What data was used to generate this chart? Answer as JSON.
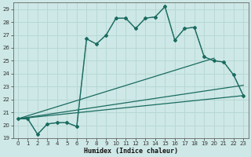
{
  "xlabel": "Humidex (Indice chaleur)",
  "background_color": "#cde8e6",
  "grid_color": "#b8d8d5",
  "line_color": "#1a6b60",
  "xlim": [
    -0.5,
    23.5
  ],
  "ylim": [
    19,
    29.5
  ],
  "xticks": [
    0,
    1,
    2,
    3,
    4,
    5,
    6,
    7,
    8,
    9,
    10,
    11,
    12,
    13,
    14,
    15,
    16,
    17,
    18,
    19,
    20,
    21,
    22,
    23
  ],
  "yticks": [
    19,
    20,
    21,
    22,
    23,
    24,
    25,
    26,
    27,
    28,
    29
  ],
  "curve1_x": [
    0,
    1,
    2,
    3,
    4,
    5,
    6,
    7,
    8,
    9,
    10,
    11,
    12,
    13,
    14,
    15,
    16,
    17,
    18,
    19,
    20,
    21,
    22,
    23
  ],
  "curve1_y": [
    20.5,
    20.5,
    19.3,
    20.1,
    20.2,
    20.2,
    19.9,
    26.7,
    26.3,
    27.0,
    28.3,
    28.3,
    27.5,
    28.3,
    28.4,
    29.2,
    26.6,
    27.5,
    27.6,
    25.3,
    25.0,
    24.9,
    23.9,
    22.3
  ],
  "curve2_x": [
    0,
    1,
    2,
    3,
    4,
    5,
    6,
    7,
    8,
    9,
    10,
    11,
    12,
    13,
    14,
    15,
    16,
    17,
    18,
    19,
    20,
    21,
    22,
    23
  ],
  "curve2_y": [
    20.5,
    20.5,
    19.3,
    20.1,
    20.2,
    20.2,
    19.9,
    26.7,
    26.3,
    27.0,
    28.3,
    28.3,
    27.5,
    28.3,
    28.4,
    29.2,
    26.6,
    27.5,
    27.6,
    25.3,
    25.0,
    24.9,
    23.9,
    22.3
  ],
  "line1_x": [
    0,
    23
  ],
  "line1_y": [
    20.5,
    22.3
  ],
  "line2_x": [
    0,
    23
  ],
  "line2_y": [
    20.5,
    22.3
  ],
  "line3_x": [
    0,
    19
  ],
  "line3_y": [
    20.5,
    25.0
  ],
  "line4_x": [
    0,
    20
  ],
  "line4_y": [
    20.5,
    25.0
  ]
}
